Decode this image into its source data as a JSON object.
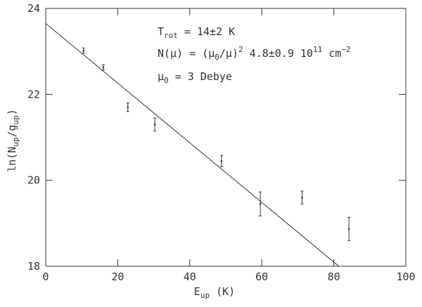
{
  "chart_data": {
    "type": "scatter",
    "x": [
      10.5,
      16.0,
      22.8,
      30.3,
      48.8,
      59.6,
      71.2,
      84.2
    ],
    "values": [
      23.02,
      22.63,
      21.7,
      21.3,
      20.45,
      19.45,
      19.6,
      18.87
    ],
    "errors": [
      0.06,
      0.06,
      0.1,
      0.15,
      0.13,
      0.28,
      0.15,
      0.27
    ],
    "fit": {
      "x": [
        0,
        81.4
      ],
      "y": [
        23.65,
        18
      ]
    },
    "xlim": [
      0,
      100
    ],
    "ylim": [
      18,
      24
    ],
    "xticks": [
      0,
      20,
      40,
      60,
      80,
      100
    ],
    "yticks": [
      18,
      20,
      22,
      24
    ],
    "xlabel": [
      "E",
      "up",
      " (K)"
    ],
    "ylabel": [
      "ln(N",
      "up",
      "/g",
      "up",
      ")"
    ],
    "annotations": [
      [
        "T",
        "rot",
        " = 14±2 K"
      ],
      [
        "N(μ) = (μ",
        "0",
        "/μ)",
        "2",
        " 4.8±0.9 10",
        "11",
        " cm",
        "−2"
      ],
      [
        "μ",
        "0",
        " =  3 Debye"
      ]
    ]
  }
}
